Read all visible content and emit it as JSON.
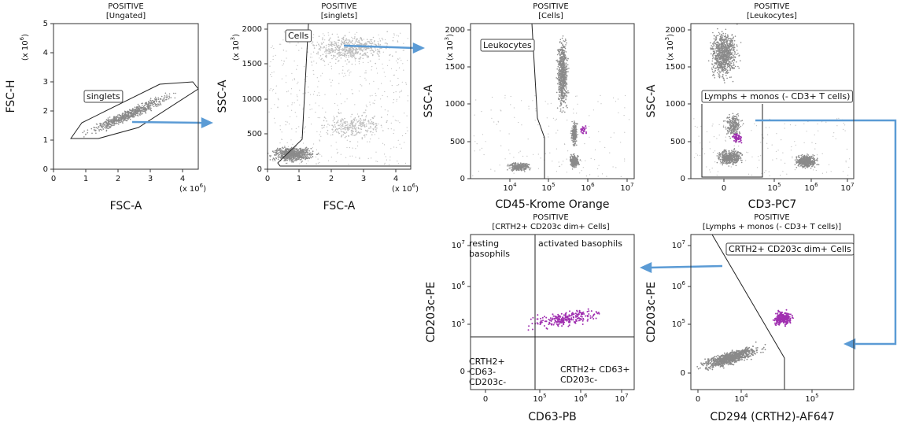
{
  "panels": [
    {
      "title": "POSITIVE",
      "subtitle": "[Ungated]",
      "x_label": "FSC-A",
      "y_label": "FSC-H",
      "x_exponent": "(x 10⁶)",
      "y_exponent": "(x 10⁶)",
      "x_ticks": [
        "0",
        "1",
        "2",
        "3",
        "4"
      ],
      "y_ticks": [
        "0",
        "1",
        "2",
        "3",
        "4",
        "5"
      ],
      "gates": [
        {
          "lines": [
            "singlets"
          ]
        }
      ]
    },
    {
      "title": "POSITIVE",
      "subtitle": "[singlets]",
      "x_label": "FSC-A",
      "y_label": "SSC-A",
      "x_exponent": "(x 10⁶)",
      "y_exponent": "(x 10³)",
      "x_ticks": [
        "0",
        "1",
        "2",
        "3",
        "4"
      ],
      "y_ticks": [
        "0",
        "500",
        "1000",
        "1500",
        "2000"
      ],
      "gates": [
        {
          "lines": [
            "Cells"
          ]
        }
      ]
    },
    {
      "title": "POSITIVE",
      "subtitle": "[Cells]",
      "x_label": "CD45-Krome Orange",
      "y_label": "SSC-A",
      "y_exponent": "(x 10³)",
      "x_ticks": [
        "10⁴",
        "10⁵",
        "10⁶",
        "10⁷"
      ],
      "y_ticks": [
        "0",
        "500",
        "1000",
        "1500",
        "2000"
      ],
      "gates": [
        {
          "lines": [
            "Leukocytes"
          ]
        }
      ]
    },
    {
      "title": "POSITIVE",
      "subtitle": "[Leukocytes]",
      "x_label": "CD3-PC7",
      "y_label": "SSC-A",
      "y_exponent": "(x 10³)",
      "x_ticks": [
        "0",
        "10⁵",
        "10⁶",
        "10⁷"
      ],
      "y_ticks": [
        "0",
        "500",
        "1000",
        "1500",
        "2000"
      ],
      "gates": [
        {
          "lines": [
            "Lymphs + monos (- CD3+ T cells)"
          ]
        }
      ]
    },
    {
      "title": "POSITIVE",
      "subtitle": "[CRTH2+ CD203c dim+ Cells]",
      "x_label": "CD63-PB",
      "y_label": "CD203c-PE",
      "x_ticks": [
        "0",
        "10⁵",
        "10⁶",
        "10⁷"
      ],
      "y_ticks": [
        "0",
        "10⁵",
        "10⁶",
        "10⁷"
      ],
      "gates": [
        {
          "lines": [
            "resting",
            "basophils"
          ]
        },
        {
          "lines": [
            "activated basophils"
          ]
        },
        {
          "lines": [
            "CRTH2+",
            "CD63-",
            "CD203c-"
          ]
        },
        {
          "lines": [
            "CRTH2+ CD63+",
            "CD203c-"
          ]
        }
      ]
    },
    {
      "title": "POSITIVE",
      "subtitle": "[Lymphs + monos (- CD3+ T cells)]",
      "x_label": "CD294 (CRTH2)-AF647",
      "y_label": "CD203c-PE",
      "x_ticks": [
        "0",
        "10⁴",
        "10⁵"
      ],
      "y_ticks": [
        "0",
        "10⁵",
        "10⁶",
        "10⁷"
      ],
      "gates": [
        {
          "lines": [
            "CRTH2+ CD203c dim+ Cells"
          ]
        }
      ]
    }
  ]
}
